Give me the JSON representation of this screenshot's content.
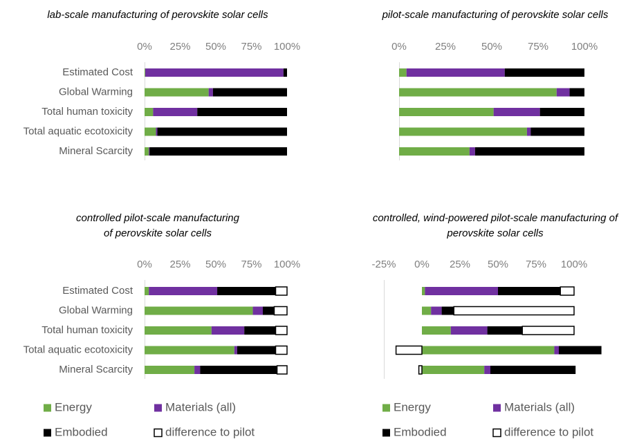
{
  "chart_data": [
    {
      "type": "stacked_barh",
      "title": [
        "lab-scale manufacturing of perovskite solar cells"
      ],
      "categories": [
        "Estimated Cost",
        "Global Warming",
        "Total human toxicity",
        "Total aquatic ecotoxicity",
        "Mineral Scarcity"
      ],
      "series": [
        {
          "name": "Energy",
          "color": "#70ad47",
          "values": [
            0.5,
            45,
            6,
            8,
            3
          ]
        },
        {
          "name": "Materials (all)",
          "color": "#7030a0",
          "values": [
            97,
            3,
            31,
            1,
            0.5
          ]
        },
        {
          "name": "Embodied",
          "color": "#000000",
          "values": [
            2.5,
            52,
            63,
            91,
            96.5
          ]
        }
      ],
      "xlim": [
        0,
        100
      ],
      "xticks": [
        {
          "value": 0,
          "label": "0%"
        },
        {
          "value": 25,
          "label": "25%"
        },
        {
          "value": 50,
          "label": "50%"
        },
        {
          "value": 75,
          "label": "75%"
        },
        {
          "value": 100,
          "label": "100%"
        }
      ]
    },
    {
      "type": "stacked_barh",
      "title": [
        "pilot-scale manufacturing of perovskite solar cells"
      ],
      "series": [
        {
          "name": "Energy",
          "color": "#70ad47",
          "values": [
            4,
            85,
            51,
            69,
            38
          ]
        },
        {
          "name": "Materials (all)",
          "color": "#7030a0",
          "values": [
            53,
            7,
            25,
            2,
            3
          ]
        },
        {
          "name": "Embodied",
          "color": "#000000",
          "values": [
            43,
            8,
            24,
            29,
            59
          ]
        }
      ],
      "xlim": [
        0,
        100
      ],
      "xticks": [
        {
          "value": 0,
          "label": "0%"
        },
        {
          "value": 25,
          "label": "25%"
        },
        {
          "value": 50,
          "label": "50%"
        },
        {
          "value": 75,
          "label": "75%"
        },
        {
          "value": 100,
          "label": "100%"
        }
      ]
    },
    {
      "type": "stacked_barh",
      "title": [
        "controlled pilot-scale manufacturing",
        "of perovskite solar cells"
      ],
      "categories": [
        "Estimated Cost",
        "Global Warming",
        "Total human toxicity",
        "Total aquatic ecotoxicity",
        "Mineral Scarcity"
      ],
      "series": [
        {
          "name": "Energy",
          "color": "#70ad47",
          "values": [
            3,
            76,
            47,
            63,
            35
          ]
        },
        {
          "name": "Materials (all)",
          "color": "#7030a0",
          "values": [
            48,
            7,
            23,
            2,
            4
          ]
        },
        {
          "name": "Embodied",
          "color": "#000000",
          "values": [
            41,
            8,
            22,
            27,
            54
          ]
        },
        {
          "name": "difference to pilot",
          "color": "#ffffff",
          "values": [
            8,
            9,
            8,
            8,
            7
          ]
        }
      ],
      "xlim": [
        0,
        100
      ],
      "xticks": [
        {
          "value": 0,
          "label": "0%"
        },
        {
          "value": 25,
          "label": "25%"
        },
        {
          "value": 50,
          "label": "50%"
        },
        {
          "value": 75,
          "label": "75%"
        },
        {
          "value": 100,
          "label": "100%"
        }
      ],
      "legend": true
    },
    {
      "type": "stacked_barh",
      "title": [
        "controlled, wind-powered pilot-scale manufacturing of",
        "perovskite solar cells"
      ],
      "series": [
        {
          "name": "Energy",
          "color": "#70ad47",
          "values": [
            2,
            6,
            19,
            87,
            41
          ]
        },
        {
          "name": "Materials (all)",
          "color": "#7030a0",
          "values": [
            48,
            7,
            24,
            3,
            4
          ]
        },
        {
          "name": "Embodied",
          "color": "#000000",
          "values": [
            41,
            8,
            23,
            28,
            56
          ]
        },
        {
          "name": "difference to pilot",
          "color": "#ffffff",
          "values": [
            9,
            79,
            34,
            -17,
            -2
          ]
        }
      ],
      "xlim": [
        -25,
        125
      ],
      "xticks": [
        {
          "value": -25,
          "label": "-25%"
        },
        {
          "value": 0,
          "label": "0%"
        },
        {
          "value": 25,
          "label": "25%"
        },
        {
          "value": 50,
          "label": "50%"
        },
        {
          "value": 75,
          "label": "75%"
        },
        {
          "value": 100,
          "label": "100%"
        }
      ],
      "legend": true
    }
  ]
}
